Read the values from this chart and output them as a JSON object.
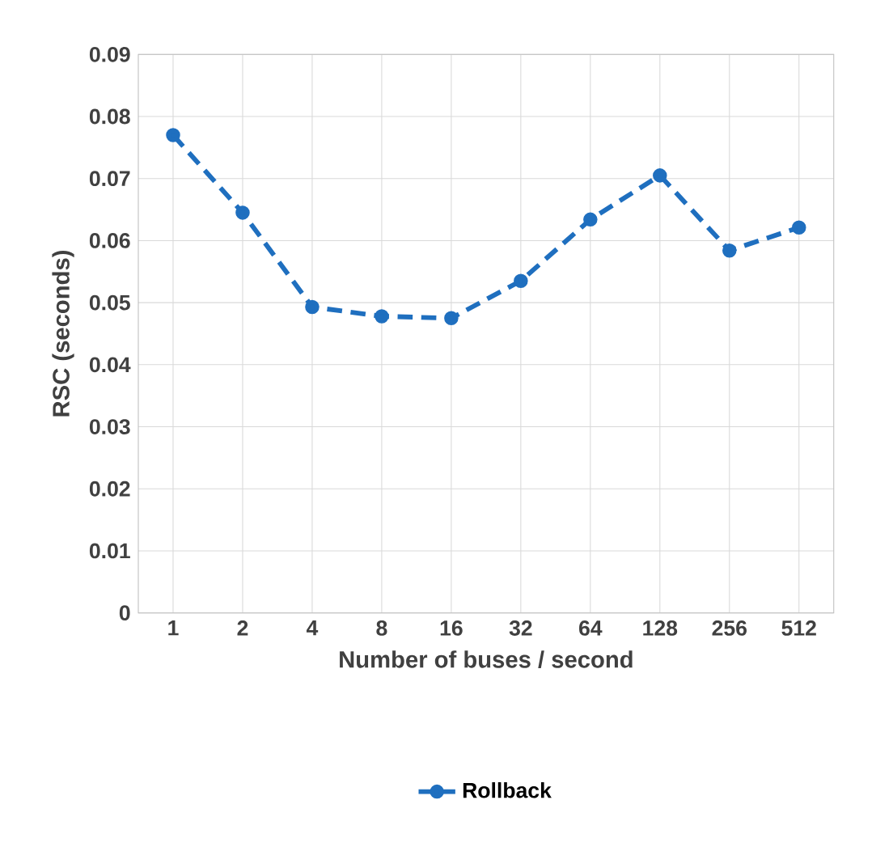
{
  "chart_data": {
    "type": "line",
    "xlabel": "Number of buses / second",
    "ylabel": "RSC (seconds)",
    "categories": [
      "1",
      "2",
      "4",
      "8",
      "16",
      "32",
      "64",
      "128",
      "256",
      "512"
    ],
    "series": [
      {
        "name": "Rollback",
        "color": "#1f6fbf",
        "values": [
          0.077,
          0.0645,
          0.0493,
          0.0478,
          0.0475,
          0.0535,
          0.0634,
          0.0705,
          0.0584,
          0.0621
        ]
      }
    ],
    "ylim": [
      0,
      0.09
    ],
    "yticks": [
      0,
      0.01,
      0.02,
      0.03,
      0.04,
      0.05,
      0.06,
      0.07,
      0.08,
      0.09
    ],
    "grid": true,
    "legend": "bottom",
    "marker": "circle",
    "line_style": "dashed"
  }
}
